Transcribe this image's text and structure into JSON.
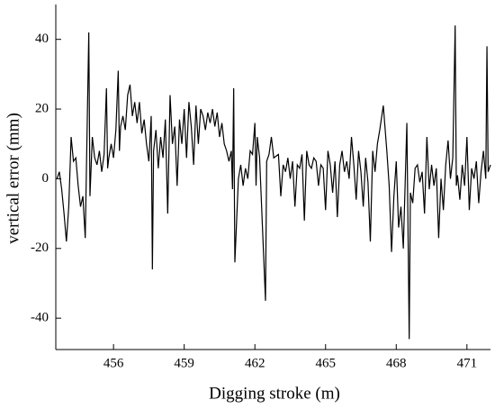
{
  "chart_data": {
    "type": "line",
    "xlabel": "Digging stroke (m)",
    "ylabel": "vertical error (mm)",
    "color": "#000000",
    "xlim": [
      453.55,
      472.0
    ],
    "ylim": [
      -49,
      50
    ],
    "xticks": [
      456,
      459,
      462,
      465,
      468,
      471
    ],
    "yticks": [
      -40,
      -20,
      0,
      20,
      40
    ],
    "x": [
      453.6,
      453.7,
      453.8,
      453.9,
      454.0,
      454.1,
      454.2,
      454.3,
      454.4,
      454.5,
      454.6,
      454.7,
      454.8,
      454.95,
      455.0,
      455.1,
      455.2,
      455.3,
      455.4,
      455.5,
      455.6,
      455.7,
      455.75,
      455.8,
      455.9,
      456.0,
      456.1,
      456.2,
      456.25,
      456.3,
      456.4,
      456.5,
      456.6,
      456.7,
      456.8,
      456.9,
      457.0,
      457.1,
      457.2,
      457.3,
      457.4,
      457.5,
      457.6,
      457.65,
      457.7,
      457.8,
      457.9,
      458.0,
      458.1,
      458.2,
      458.3,
      458.4,
      458.5,
      458.6,
      458.7,
      458.8,
      458.9,
      459.0,
      459.1,
      459.2,
      459.3,
      459.4,
      459.5,
      459.6,
      459.7,
      459.8,
      459.9,
      460.0,
      460.1,
      460.2,
      460.3,
      460.4,
      460.5,
      460.6,
      460.7,
      460.8,
      460.9,
      461.0,
      461.05,
      461.1,
      461.15,
      461.3,
      461.4,
      461.5,
      461.6,
      461.7,
      461.8,
      461.9,
      462.0,
      462.05,
      462.1,
      462.2,
      462.45,
      462.5,
      462.6,
      462.7,
      462.8,
      463.0,
      463.1,
      463.2,
      463.3,
      463.4,
      463.5,
      463.6,
      463.7,
      463.8,
      463.9,
      464.0,
      464.1,
      464.2,
      464.3,
      464.4,
      464.5,
      464.6,
      464.7,
      464.8,
      464.9,
      465.0,
      465.1,
      465.2,
      465.3,
      465.4,
      465.5,
      465.6,
      465.7,
      465.8,
      465.9,
      466.0,
      466.1,
      466.2,
      466.3,
      466.4,
      466.5,
      466.6,
      466.7,
      466.8,
      466.9,
      467.0,
      467.1,
      467.2,
      467.3,
      467.45,
      467.6,
      467.7,
      467.8,
      467.9,
      468.0,
      468.1,
      468.2,
      468.3,
      468.45,
      468.55,
      468.6,
      468.7,
      468.8,
      468.9,
      469.0,
      469.1,
      469.2,
      469.3,
      469.4,
      469.5,
      469.6,
      469.7,
      469.8,
      469.9,
      470.0,
      470.1,
      470.2,
      470.3,
      470.4,
      470.5,
      470.55,
      470.6,
      470.7,
      470.8,
      470.9,
      471.0,
      471.1,
      471.2,
      471.3,
      471.4,
      471.5,
      471.6,
      471.7,
      471.8,
      471.85,
      471.9,
      472.0
    ],
    "values": [
      0,
      2,
      -3,
      -10,
      -18,
      -8,
      12,
      5,
      6,
      -2,
      -8,
      -5,
      -17,
      42,
      -5,
      12,
      6,
      4,
      8,
      2,
      7,
      26,
      3,
      6,
      10,
      6,
      14,
      31,
      8,
      15,
      18,
      14,
      24,
      27,
      18,
      22,
      16,
      22,
      13,
      17,
      10,
      5,
      18,
      -26,
      8,
      14,
      3,
      12,
      6,
      17,
      -10,
      24,
      10,
      15,
      -2,
      17,
      10,
      20,
      6,
      22,
      15,
      4,
      21,
      10,
      20,
      18,
      14,
      19,
      16,
      20,
      15,
      19,
      12,
      16,
      10,
      8,
      5,
      8,
      -3,
      26,
      -24,
      0,
      4,
      -2,
      3,
      0,
      8,
      7,
      16,
      -2,
      12,
      6,
      -35,
      5,
      7,
      12,
      6,
      7,
      -5,
      4,
      2,
      6,
      0,
      5,
      -8,
      4,
      3,
      7,
      -12,
      8,
      4,
      3,
      6,
      5,
      -2,
      4,
      3,
      -9,
      8,
      4,
      -4,
      5,
      -11,
      4,
      8,
      2,
      5,
      0,
      12,
      4,
      -6,
      8,
      2,
      -8,
      6,
      -1,
      -18,
      8,
      2,
      10,
      14,
      21,
      8,
      -2,
      -21,
      -5,
      5,
      -14,
      -8,
      -20,
      16,
      -46,
      -4,
      -7,
      3,
      4,
      -1,
      2,
      -10,
      12,
      -3,
      4,
      -2,
      3,
      -17,
      0,
      -9,
      4,
      11,
      0,
      6,
      44,
      -2,
      1,
      -6,
      4,
      -2,
      12,
      -9,
      3,
      0,
      5,
      -7,
      2,
      8,
      0,
      38,
      2,
      4
    ]
  }
}
